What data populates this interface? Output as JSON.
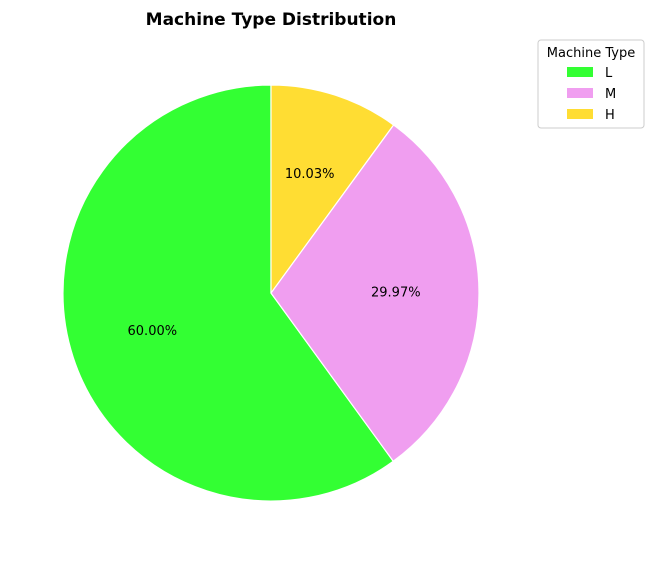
{
  "chart_data": {
    "type": "pie",
    "title": "Machine Type Distribution",
    "categories": [
      "L",
      "M",
      "H"
    ],
    "values": [
      60.0,
      29.97,
      10.03
    ],
    "value_labels": [
      "60.00%",
      "29.97%",
      "10.03%"
    ],
    "colors": [
      "#33ff33",
      "#f09ef0",
      "#ffdd33"
    ],
    "start_angle_deg": 90,
    "direction": "counterclockwise",
    "slice_edge_color": "#ffffff",
    "legend": {
      "title": "Machine Type",
      "placement": "upper-right-outside",
      "entries": [
        "L",
        "M",
        "H"
      ]
    }
  }
}
